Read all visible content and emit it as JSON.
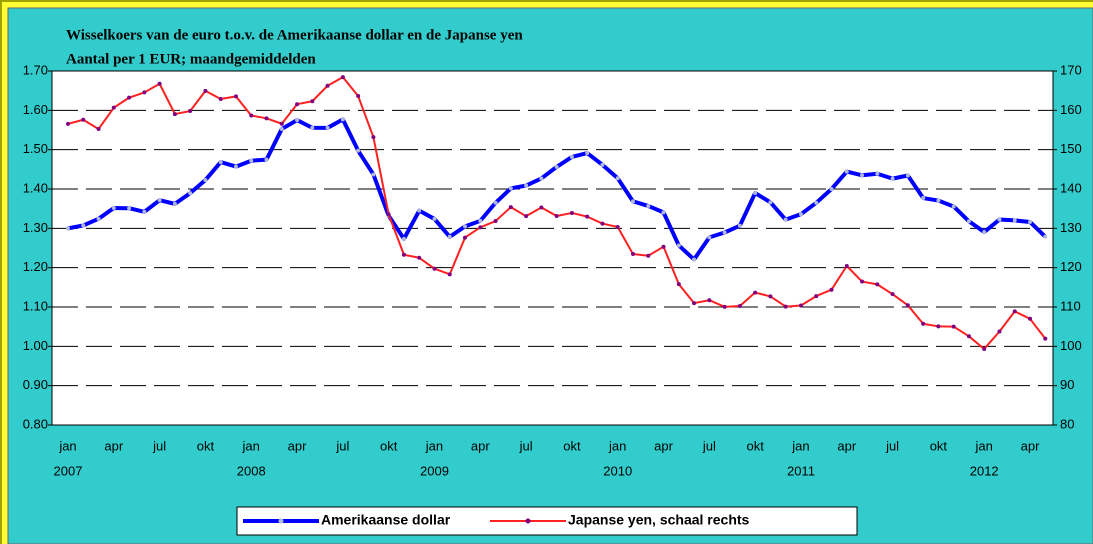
{
  "chart_data": {
    "type": "line",
    "title": "Wisselkoers van de euro t.o.v. de Amerikaanse dollar en de Japanse yen",
    "subtitle": "Aantal per 1 EUR; maandgemiddelden",
    "x": [
      "2007-01",
      "2007-02",
      "2007-03",
      "2007-04",
      "2007-05",
      "2007-06",
      "2007-07",
      "2007-08",
      "2007-09",
      "2007-10",
      "2007-11",
      "2007-12",
      "2008-01",
      "2008-02",
      "2008-03",
      "2008-04",
      "2008-05",
      "2008-06",
      "2008-07",
      "2008-08",
      "2008-09",
      "2008-10",
      "2008-11",
      "2008-12",
      "2009-01",
      "2009-02",
      "2009-03",
      "2009-04",
      "2009-05",
      "2009-06",
      "2009-07",
      "2009-08",
      "2009-09",
      "2009-10",
      "2009-11",
      "2009-12",
      "2010-01",
      "2010-02",
      "2010-03",
      "2010-04",
      "2010-05",
      "2010-06",
      "2010-07",
      "2010-08",
      "2010-09",
      "2010-10",
      "2010-11",
      "2010-12",
      "2011-01",
      "2011-02",
      "2011-03",
      "2011-04",
      "2011-05",
      "2011-06",
      "2011-07",
      "2011-08",
      "2011-09",
      "2011-10",
      "2011-11",
      "2011-12",
      "2012-01",
      "2012-02",
      "2012-03",
      "2012-04",
      "2012-05"
    ],
    "xticks": [
      {
        "value": "2007-01",
        "label": "jan"
      },
      {
        "value": "2007-04",
        "label": "apr"
      },
      {
        "value": "2007-07",
        "label": "jul"
      },
      {
        "value": "2007-10",
        "label": "okt"
      },
      {
        "value": "2008-01",
        "label": "jan"
      },
      {
        "value": "2008-04",
        "label": "apr"
      },
      {
        "value": "2008-07",
        "label": "jul"
      },
      {
        "value": "2008-10",
        "label": "okt"
      },
      {
        "value": "2009-01",
        "label": "jan"
      },
      {
        "value": "2009-04",
        "label": "apr"
      },
      {
        "value": "2009-07",
        "label": "jul"
      },
      {
        "value": "2009-10",
        "label": "okt"
      },
      {
        "value": "2010-01",
        "label": "jan"
      },
      {
        "value": "2010-04",
        "label": "apr"
      },
      {
        "value": "2010-07",
        "label": "jul"
      },
      {
        "value": "2010-10",
        "label": "okt"
      },
      {
        "value": "2011-01",
        "label": "jan"
      },
      {
        "value": "2011-04",
        "label": "apr"
      },
      {
        "value": "2011-07",
        "label": "jul"
      },
      {
        "value": "2011-10",
        "label": "okt"
      },
      {
        "value": "2012-01",
        "label": "jan"
      },
      {
        "value": "2012-04",
        "label": "apr"
      }
    ],
    "year_ticks": [
      {
        "value": "2007-01",
        "label": "2007"
      },
      {
        "value": "2008-01",
        "label": "2008"
      },
      {
        "value": "2009-01",
        "label": "2009"
      },
      {
        "value": "2010-01",
        "label": "2010"
      },
      {
        "value": "2011-01",
        "label": "2011"
      },
      {
        "value": "2012-01",
        "label": "2012"
      }
    ],
    "ylim": [
      0.8,
      1.7
    ],
    "yticks": [
      {
        "value": 0.8,
        "label": "0.80"
      },
      {
        "value": 0.9,
        "label": "0.90"
      },
      {
        "value": 1.0,
        "label": "1.00"
      },
      {
        "value": 1.1,
        "label": "1.10"
      },
      {
        "value": 1.2,
        "label": "1.20"
      },
      {
        "value": 1.3,
        "label": "1.30"
      },
      {
        "value": 1.4,
        "label": "1.40"
      },
      {
        "value": 1.5,
        "label": "1.50"
      },
      {
        "value": 1.6,
        "label": "1.60"
      },
      {
        "value": 1.7,
        "label": "1.70"
      }
    ],
    "y2lim": [
      80,
      170
    ],
    "y2ticks": [
      80,
      90,
      100,
      110,
      120,
      130,
      140,
      150,
      160,
      170
    ],
    "grid": true,
    "legend": "bottom",
    "series": [
      {
        "name": "Amerikaanse dollar",
        "color": "#0000ff",
        "marker_color": "#b0b8d8",
        "values": [
          1.2999,
          1.3074,
          1.3242,
          1.3516,
          1.3511,
          1.3419,
          1.3716,
          1.3622,
          1.3896,
          1.4227,
          1.4684,
          1.457,
          1.4718,
          1.4748,
          1.5527,
          1.5751,
          1.5557,
          1.5553,
          1.577,
          1.4975,
          1.437,
          1.3322,
          1.2732,
          1.3449,
          1.3239,
          1.2785,
          1.305,
          1.319,
          1.365,
          1.4016,
          1.4088,
          1.4268,
          1.4562,
          1.4816,
          1.4914,
          1.4614,
          1.4272,
          1.3686,
          1.3569,
          1.3406,
          1.2565,
          1.2209,
          1.277,
          1.2894,
          1.3067,
          1.3898,
          1.3661,
          1.322,
          1.336,
          1.3649,
          1.3999,
          1.4442,
          1.4349,
          1.4388,
          1.4264,
          1.4343,
          1.377,
          1.3706,
          1.3556,
          1.3179,
          1.2905,
          1.3224,
          1.3201,
          1.3162,
          1.2789
        ]
      },
      {
        "name": "Japanse yen, schaal rechts",
        "color": "#ff2020",
        "marker_color": "#800080",
        "axis": "y2",
        "values": [
          156.56,
          157.6,
          155.24,
          160.68,
          163.22,
          164.55,
          166.76,
          159.05,
          159.82,
          164.95,
          162.89,
          163.55,
          158.68,
          157.97,
          156.59,
          161.56,
          162.31,
          166.26,
          168.45,
          163.63,
          153.2,
          133.52,
          123.28,
          122.51,
          119.73,
          118.3,
          127.65,
          130.25,
          131.85,
          135.39,
          133.09,
          135.31,
          133.14,
          133.91,
          132.97,
          131.21,
          130.34,
          123.46,
          123.03,
          125.33,
          115.83,
          110.99,
          111.73,
          110.04,
          110.26,
          113.67,
          112.69,
          110.11,
          110.38,
          112.77,
          114.4,
          120.42,
          116.47,
          115.75,
          113.26,
          110.43,
          105.75,
          105.06,
          105.02,
          102.55,
          99.33,
          103.77,
          108.88,
          107.0,
          101.97
        ]
      }
    ]
  }
}
